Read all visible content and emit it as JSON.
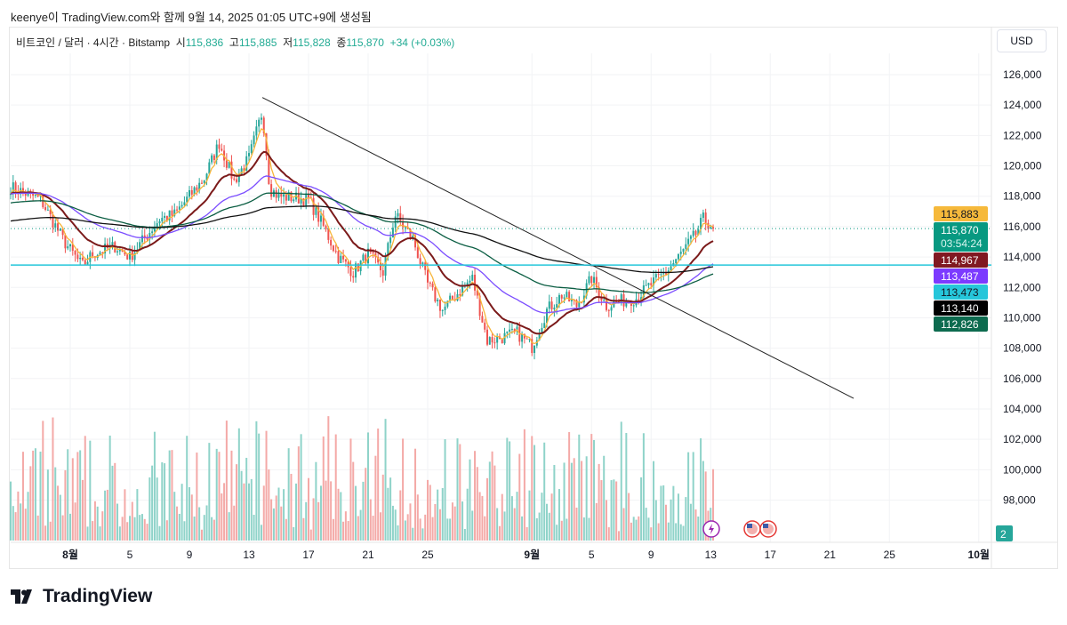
{
  "caption": "keenye이 TradingView.com와 함께 9월 14, 2025 01:05 UTC+9에 생성됨",
  "legend": {
    "symbol": "비트코인 / 달러 · 4시간 · Bitstamp",
    "o_label": "시",
    "o": "115,836",
    "h_label": "고",
    "h": "115,885",
    "l_label": "저",
    "l": "115,828",
    "c_label": "종",
    "c": "115,870",
    "change": "+34 (+0.03%)"
  },
  "currency": "USD",
  "logo": "TradingView",
  "volume_badge": "2",
  "chart_data": {
    "type": "candlestick",
    "ylim": [
      96000,
      126000
    ],
    "y_ticks": [
      98000,
      100000,
      102000,
      104000,
      106000,
      108000,
      110000,
      112000,
      114000,
      116000,
      118000,
      120000,
      122000,
      124000,
      126000
    ],
    "y_tick_labels": [
      "98,000",
      "100,000",
      "102,000",
      "104,000",
      "106,000",
      "108,000",
      "110,000",
      "112,000",
      "114,000",
      "116,000",
      "118,000",
      "120,000",
      "122,000",
      "124,000",
      "126,000"
    ],
    "x_ticks": [
      {
        "day": 4,
        "label": "8월"
      },
      {
        "day": 8,
        "label": "5"
      },
      {
        "day": 12,
        "label": "9"
      },
      {
        "day": 16,
        "label": "13"
      },
      {
        "day": 20,
        "label": "17"
      },
      {
        "day": 24,
        "label": "21"
      },
      {
        "day": 28,
        "label": "25"
      },
      {
        "day": 35,
        "label": "9월"
      },
      {
        "day": 39,
        "label": "5"
      },
      {
        "day": 43,
        "label": "9"
      },
      {
        "day": 47,
        "label": "13"
      },
      {
        "day": 51,
        "label": "17"
      },
      {
        "day": 55,
        "label": "21"
      },
      {
        "day": 59,
        "label": "25"
      },
      {
        "day": 65,
        "label": "10월"
      }
    ],
    "x_unit": "days since Jul 28 2025",
    "close_path": [
      [
        0,
        118600
      ],
      [
        2,
        117800
      ],
      [
        3.6,
        115000
      ],
      [
        4.8,
        113400
      ],
      [
        5.5,
        114200
      ],
      [
        7,
        114700
      ],
      [
        8,
        114000
      ],
      [
        10,
        116500
      ],
      [
        11,
        116800
      ],
      [
        13,
        119200
      ],
      [
        14,
        121500
      ],
      [
        15,
        119000
      ],
      [
        16,
        120500
      ],
      [
        16.9,
        123600
      ],
      [
        17.4,
        118500
      ],
      [
        18,
        118000
      ],
      [
        20,
        117800
      ],
      [
        21,
        116000
      ],
      [
        22,
        114000
      ],
      [
        23,
        113000
      ],
      [
        24,
        114200
      ],
      [
        25,
        113000
      ],
      [
        25.8,
        116800
      ],
      [
        27,
        115200
      ],
      [
        28,
        112200
      ],
      [
        29,
        110500
      ],
      [
        30,
        111600
      ],
      [
        31,
        112600
      ],
      [
        32,
        108500
      ],
      [
        33,
        108700
      ],
      [
        34,
        109000
      ],
      [
        35,
        108100
      ],
      [
        36,
        110500
      ],
      [
        37,
        111500
      ],
      [
        38,
        110800
      ],
      [
        39,
        112600
      ],
      [
        40,
        110800
      ],
      [
        41,
        111100
      ],
      [
        42,
        111300
      ],
      [
        43,
        112200
      ],
      [
        44,
        113000
      ],
      [
        45,
        114200
      ],
      [
        46,
        115500
      ],
      [
        46.5,
        116500
      ],
      [
        47.3,
        115870
      ]
    ],
    "indicators": [
      {
        "name": "EMA fast",
        "color": "#f7b53a",
        "last": "115,883",
        "label_bg": "#f6b93b"
      },
      {
        "name": "EMA 20",
        "color": "#7b1a1a",
        "last": "114,967",
        "label_bg": "#801922"
      },
      {
        "name": "EMA 50",
        "color": "#7b4dff",
        "last": "113,487",
        "label_bg": "#7c3bff"
      },
      {
        "name": "Horizontal line",
        "color": "#26c6da",
        "last": "113,473",
        "label_bg": "#26c6da"
      },
      {
        "name": "EMA 200",
        "color": "#111111",
        "last": "113,140",
        "label_bg": "#000000"
      },
      {
        "name": "EMA 100",
        "color": "#0b5e43",
        "last": "112,826",
        "label_bg": "#0d6b4f"
      }
    ],
    "last_price": {
      "value": 115870,
      "label": "115,870",
      "countdown": "03:54:24",
      "color": "#089981"
    },
    "trendline": [
      [
        16.9,
        124500
      ],
      [
        56.6,
        104700
      ]
    ],
    "horizontal_line": 113473,
    "colors": {
      "up": "#26a69a",
      "down": "#ef5350",
      "vol_up": "#8fd3c9",
      "vol_down": "#f4a9a7"
    }
  }
}
